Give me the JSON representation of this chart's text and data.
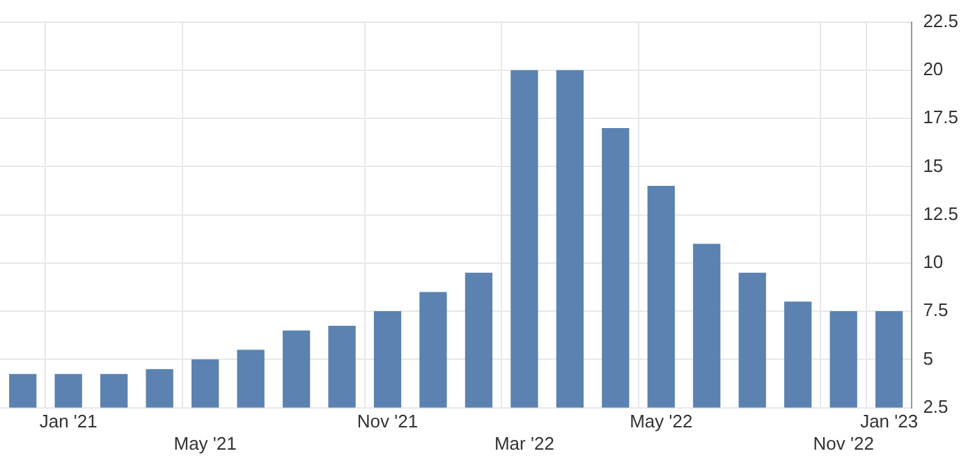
{
  "chart_data": {
    "type": "bar",
    "categories": [
      null,
      "Jan '21",
      null,
      null,
      "May '21",
      null,
      null,
      null,
      "Nov '21",
      null,
      null,
      "Mar '22",
      null,
      null,
      "May '22",
      null,
      null,
      null,
      "Nov '22",
      "Jan '23"
    ],
    "values": [
      4.25,
      4.25,
      4.25,
      4.5,
      5,
      5.5,
      6.5,
      6.75,
      7.5,
      8.5,
      9.5,
      20,
      20,
      17,
      14,
      11,
      9.5,
      8,
      7.5,
      7.5
    ],
    "color": "#5b82b0",
    "ylim": [
      2.5,
      22.5
    ],
    "yticks": [
      2.5,
      5,
      7.5,
      10,
      12.5,
      15,
      17.5,
      20,
      22.5
    ],
    "grid": true,
    "legend": false
  }
}
